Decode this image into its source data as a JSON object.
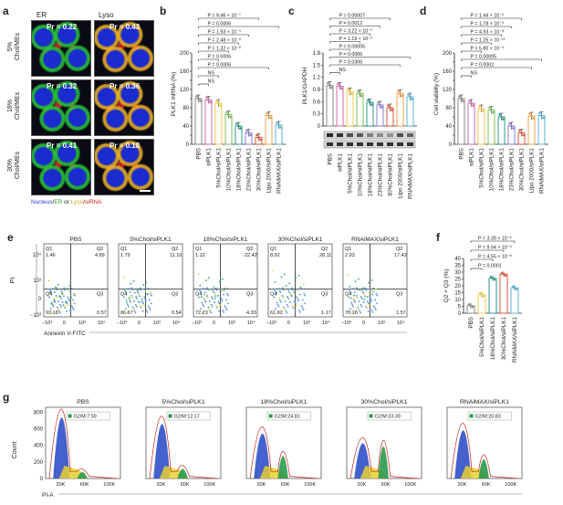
{
  "panels": {
    "a": {
      "label": "a",
      "col_labels": [
        "ER",
        "Lyso"
      ],
      "rows": [
        {
          "label": "5%\nChol/MEs",
          "pr": [
            "Pr = 0.22",
            "Pr = 0.43"
          ]
        },
        {
          "label": "18%\nChol/MEs",
          "pr": [
            "Pr = 0.32",
            "Pr = 0.36"
          ]
        },
        {
          "label": "30%\nChol/MEs",
          "pr": [
            "Pr = 0.41",
            "Pr = 0.18"
          ]
        }
      ],
      "caption_parts": [
        "Nucleus",
        "/",
        "ER",
        " or ",
        "Lyso",
        "/",
        "siRNA"
      ],
      "caption_colors": [
        "#2a3fd6",
        "#222222",
        "#2a9a2a",
        "#222222",
        "#d4a017",
        "#222222",
        "#d02020"
      ]
    },
    "b": {
      "label": "b",
      "ylabel": "PLK1 mRNA (%)",
      "yticks": [
        "0",
        "20",
        "40",
        "60",
        "80",
        "100",
        "120",
        "140",
        "160",
        "180",
        "200"
      ],
      "pvalues": [
        "P = 9.46 × 10⁻⁷",
        "P = 0.0006",
        "P = 1.93 × 10⁻⁵",
        "P = 2.48 × 10⁻⁶",
        "P = 1.32 × 10⁻⁶",
        "P = 0.0006",
        "P = 0.0006",
        "NS",
        "NS"
      ]
    },
    "c": {
      "label": "c",
      "ylabel": "PLK1/GAPDH",
      "yticks": [
        "0",
        "0.3",
        "0.6",
        "0.9",
        "1.2",
        "1.5",
        "1.8"
      ],
      "pvalues": [
        "P = 0.00007",
        "P = 0.0012",
        "P = 3.22 × 10⁻⁵",
        "P = 1.19 × 10⁻⁵",
        "P = 0.00005",
        "P = 0.0006",
        "P = 0.0306",
        "NS"
      ],
      "blots": [
        "PLK1",
        "GAPDH"
      ]
    },
    "d": {
      "label": "d",
      "ylabel": "Cell viability (%)",
      "yticks": [
        "0",
        "20",
        "40",
        "60",
        "80",
        "100",
        "120",
        "140",
        "160",
        "180",
        "200"
      ],
      "pvalues": [
        "P = 1.44 × 10⁻⁶",
        "P = 1.78 × 10⁻⁶",
        "P = 4.93 × 10⁻⁸",
        "P = 1.25 × 10⁻¹¹",
        "P = 5.80 × 10⁻⁹",
        "P = 0.00005",
        "P = 0.0002",
        "NS"
      ]
    },
    "e": {
      "label": "e",
      "ylabel": "PI",
      "xlabel": "Annexin V-FITC",
      "yticks": [
        "10⁴",
        "10³",
        "0",
        "−10³"
      ],
      "xticks": [
        "−10³",
        "0",
        "10³",
        "10⁴"
      ],
      "plots": [
        {
          "title": "PBS",
          "q1": "1.46",
          "q2": "4.89",
          "q3": "0.57",
          "q4": "93.18"
        },
        {
          "title": "5%Chol/siPLK1",
          "q1": "1.79",
          "q2": "11.10",
          "q3": "0.54",
          "q4": "86.67"
        },
        {
          "title": "18%Chol/siPLK1",
          "q1": "1.12",
          "q2": "22.42",
          "q3": "4.33",
          "q4": "72.23"
        },
        {
          "title": "30%Chol/siPLK1",
          "q1": "8.92",
          "q2": "28.11",
          "q3": "1.17",
          "q4": "61.92"
        },
        {
          "title": "RNAiMAX/siPLK1",
          "q1": "2.93",
          "q2": "17.42",
          "q3": "1.57",
          "q4": "78.18"
        }
      ],
      "qnames": [
        "Q1",
        "Q2",
        "Q3",
        "Q4"
      ]
    },
    "f": {
      "label": "f",
      "ylabel": "Q2 + Q3 (%)",
      "yticks": [
        "0",
        "5",
        "10",
        "15",
        "20",
        "25",
        "30",
        "35",
        "40"
      ],
      "pvalues": [
        "P = 3.39 × 10⁻⁶",
        "P = 9.94 × 10⁻⁹",
        "P = 4.55 × 10⁻⁸",
        "P = 0.0001"
      ]
    },
    "g": {
      "label": "g",
      "ylabel": "Count",
      "xlabel": "PI-A",
      "yticks": [
        "0",
        "200",
        "400",
        "600",
        "800"
      ],
      "xticks": [
        "20K",
        "60K",
        "100K"
      ],
      "plots": [
        {
          "title": "PBS",
          "g2m": "G2/M:7.59"
        },
        {
          "title": "5%Chol/siPLK1",
          "g2m": "G2/M:12.17"
        },
        {
          "title": "18%Chol/siPLK1",
          "g2m": "G2/M:24.81"
        },
        {
          "title": "30%Chol/siPLK1",
          "g2m": "G2/M:33.39"
        },
        {
          "title": "RNAiMAX/siPLK1",
          "g2m": "G2/M:20.83"
        }
      ]
    }
  },
  "chart_data": [
    {
      "type": "bar",
      "title": "",
      "ylabel": "PLK1 mRNA (%)",
      "ylim": [
        0,
        200
      ],
      "categories": [
        "PBS",
        "siPLK1",
        "5%Chol/siPLK1",
        "10%Chol/siPLK1",
        "18%Chol/siPLK1",
        "23%Chol/siPLK1",
        "30%Chol/siPLK1",
        "Lipo 2000/siPLK1",
        "RNAiMAX/siPLK1"
      ],
      "values": [
        100,
        97,
        90,
        65,
        40,
        25,
        15,
        63,
        42
      ],
      "colors": [
        "#8a8a8a",
        "#d66ab0",
        "#f2c94c",
        "#7bbf5a",
        "#2b9a8a",
        "#8c7fd6",
        "#e0533b",
        "#f0a04b",
        "#5ab4d6"
      ]
    },
    {
      "type": "bar",
      "title": "",
      "ylabel": "PLK1/GAPDH",
      "ylim": [
        0,
        1.8
      ],
      "categories": [
        "PBS",
        "siPLK1",
        "5%Chol/siPLK1",
        "10%Chol/siPLK1",
        "18%Chol/siPLK1",
        "23%Chol/siPLK1",
        "30%Chol/siPLK1",
        "Lipo 2000/siPLK1",
        "RNAiMAX/siPLK1"
      ],
      "values": [
        1.0,
        0.98,
        0.85,
        0.8,
        0.58,
        0.52,
        0.45,
        0.8,
        0.72
      ],
      "colors": [
        "#8a8a8a",
        "#d66ab0",
        "#f2c94c",
        "#7bbf5a",
        "#2b9a8a",
        "#8c7fd6",
        "#e0533b",
        "#f0a04b",
        "#5ab4d6"
      ]
    },
    {
      "type": "bar",
      "title": "",
      "ylabel": "Cell viability (%)",
      "ylim": [
        0,
        200
      ],
      "categories": [
        "PBS",
        "siPLK1",
        "5%Chol/siPLK1",
        "10%Chol/siPLK1",
        "18%Chol/siPLK1",
        "23%Chol/siPLK1",
        "30%Chol/siPLK1",
        "Lipo 2000/siPLK1",
        "RNAiMAX/siPLK1"
      ],
      "values": [
        100,
        90,
        78,
        75,
        60,
        40,
        25,
        62,
        63
      ],
      "colors": [
        "#8a8a8a",
        "#d66ab0",
        "#f2c94c",
        "#7bbf5a",
        "#2b9a8a",
        "#8c7fd6",
        "#e0533b",
        "#f0a04b",
        "#5ab4d6"
      ]
    },
    {
      "type": "bar",
      "title": "",
      "ylabel": "Q2 + Q3 (%)",
      "ylim": [
        0,
        40
      ],
      "categories": [
        "PBS",
        "5%Chol/siPLK1",
        "18%Chol/siPLK1",
        "30%Chol/siPLK1",
        "RNAiMAX/siPLK1"
      ],
      "values": [
        5.5,
        13.5,
        25.5,
        28.5,
        18.5
      ],
      "colors": [
        "#8a8a8a",
        "#f2c94c",
        "#2b9a8a",
        "#e0533b",
        "#5ab4d6"
      ]
    }
  ]
}
